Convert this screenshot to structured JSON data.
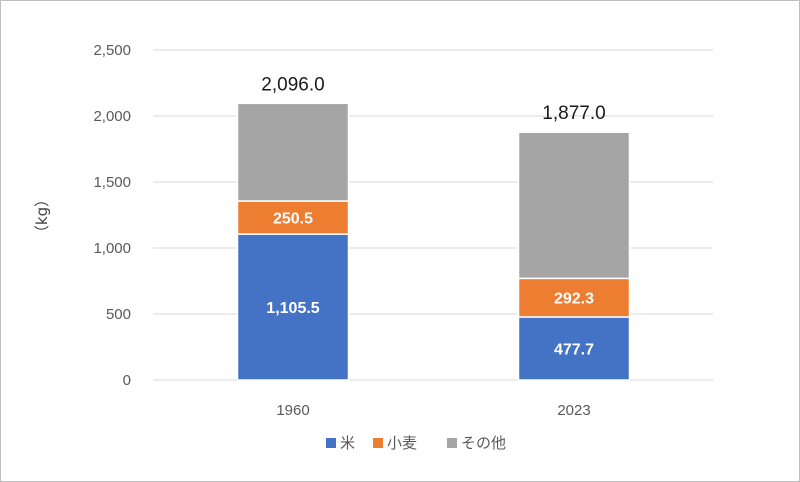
{
  "chart_data": {
    "type": "bar",
    "stacked": true,
    "categories": [
      "1960",
      "2023"
    ],
    "series": [
      {
        "name": "米",
        "values": [
          1105.5,
          477.7
        ],
        "color": "#4472c4",
        "labels": [
          "1,105.5",
          "477.7"
        ]
      },
      {
        "name": "小麦",
        "values": [
          250.5,
          292.3
        ],
        "color": "#ed7d31",
        "labels": [
          "250.5",
          "292.3"
        ]
      },
      {
        "name": "その他",
        "values": [
          740.0,
          1107.0
        ],
        "color": "#a5a5a5"
      }
    ],
    "totals": [
      "2,096.0",
      "1,877.0"
    ],
    "total_values": [
      2096.0,
      1877.0
    ],
    "ylabel": "（kg）",
    "ylim": [
      0,
      2500
    ],
    "yticks": [
      0,
      500,
      1000,
      1500,
      2000,
      2500
    ],
    "ytick_labels": [
      "0",
      "500",
      "1,000",
      "1,500",
      "2,000",
      "2,500"
    ],
    "grid": true,
    "legend_position": "bottom",
    "gridline_color": "#d9d9d9"
  }
}
